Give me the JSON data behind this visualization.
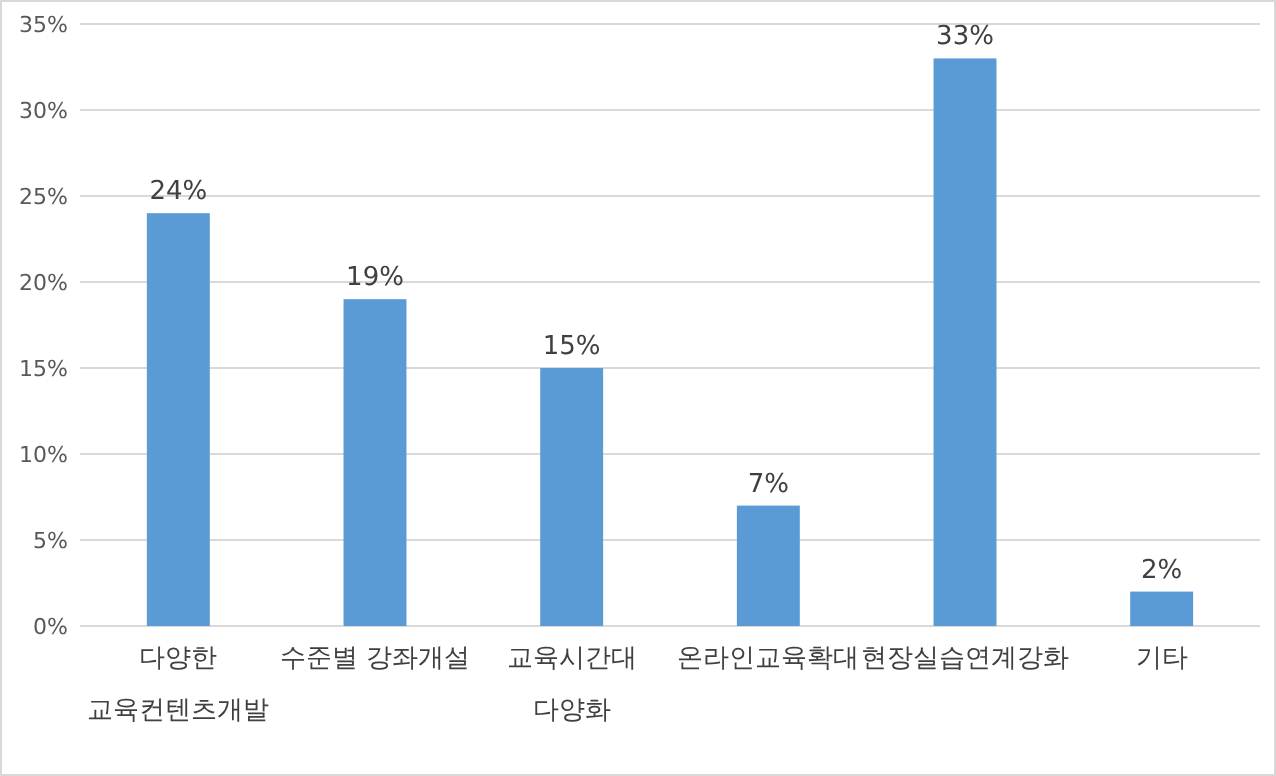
{
  "chart_data": {
    "type": "bar",
    "categories": [
      "다양한\n교육컨텐츠개발",
      "수준별 강좌개설",
      "교육시간대\n다양화",
      "온라인교육확대",
      "현장실습연계강화",
      "기타"
    ],
    "values": [
      24,
      19,
      15,
      7,
      33,
      2
    ],
    "value_labels": [
      "24%",
      "19%",
      "15%",
      "7%",
      "33%",
      "2%"
    ],
    "color": "#5b9bd5",
    "ylim": [
      0,
      35
    ],
    "yticks": [
      {
        "value": 0,
        "label": "0%"
      },
      {
        "value": 5,
        "label": "5%"
      },
      {
        "value": 10,
        "label": "10%"
      },
      {
        "value": 15,
        "label": "15%"
      },
      {
        "value": 20,
        "label": "20%"
      },
      {
        "value": 25,
        "label": "25%"
      },
      {
        "value": 30,
        "label": "30%"
      },
      {
        "value": 35,
        "label": "35%"
      }
    ],
    "grid": "y"
  }
}
